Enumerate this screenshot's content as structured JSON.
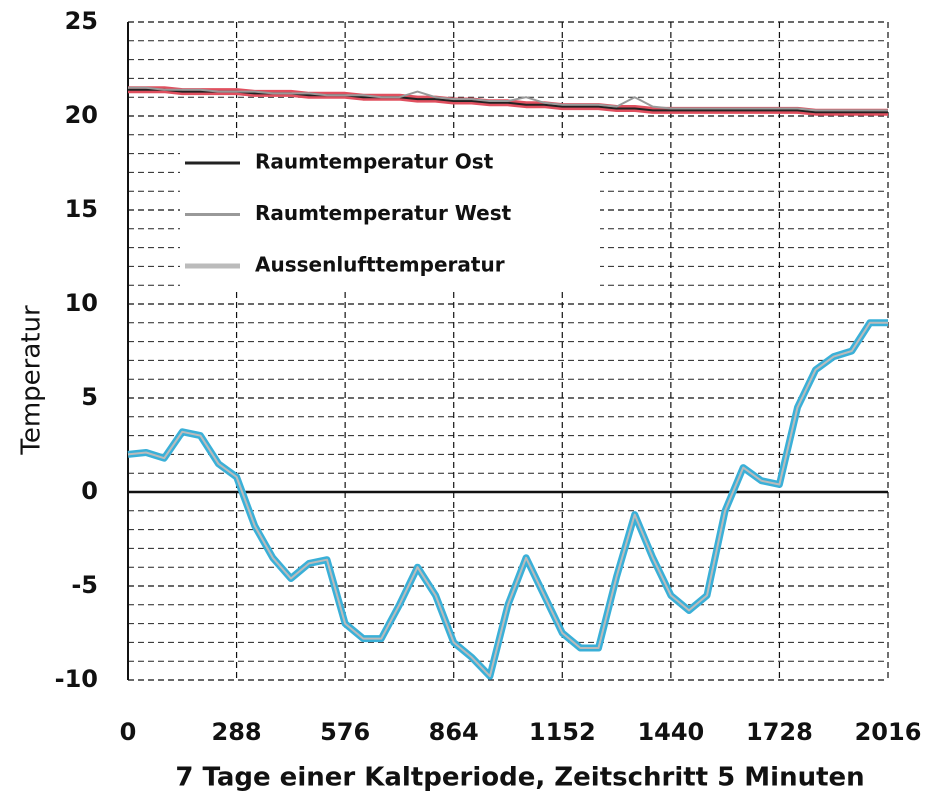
{
  "chart_data": {
    "type": "line",
    "x_label": "7 Tage einer Kaltperiode, Zeitschritt 5 Minuten",
    "y_label": "Temperatur",
    "x": [
      0,
      48,
      96,
      144,
      192,
      240,
      288,
      336,
      384,
      432,
      480,
      528,
      576,
      624,
      672,
      720,
      768,
      816,
      864,
      912,
      960,
      1008,
      1056,
      1104,
      1152,
      1200,
      1248,
      1296,
      1344,
      1392,
      1440,
      1488,
      1536,
      1584,
      1632,
      1680,
      1728,
      1776,
      1824,
      1872,
      1920,
      1968,
      2016
    ],
    "series": [
      {
        "name": "Raumtemperatur Ost",
        "color": "#222222",
        "highlight": "#e0505f",
        "values": [
          21.4,
          21.4,
          21.4,
          21.3,
          21.3,
          21.3,
          21.3,
          21.2,
          21.2,
          21.2,
          21.1,
          21.1,
          21.1,
          21.0,
          21.0,
          21.0,
          20.9,
          20.9,
          20.8,
          20.8,
          20.7,
          20.7,
          20.6,
          20.6,
          20.5,
          20.5,
          20.5,
          20.4,
          20.4,
          20.3,
          20.3,
          20.3,
          20.3,
          20.3,
          20.3,
          20.3,
          20.3,
          20.3,
          20.2,
          20.2,
          20.2,
          20.2,
          20.2
        ]
      },
      {
        "name": "Raumtemperatur West",
        "color": "#999999",
        "values": [
          21.5,
          21.5,
          21.4,
          21.4,
          21.4,
          21.3,
          21.3,
          21.3,
          21.2,
          21.2,
          21.2,
          21.1,
          21.1,
          21.1,
          21.0,
          21.0,
          21.3,
          21.0,
          20.9,
          20.9,
          20.8,
          20.8,
          21.0,
          20.7,
          20.6,
          20.6,
          20.6,
          20.5,
          21.0,
          20.5,
          20.4,
          20.4,
          20.4,
          20.4,
          20.4,
          20.4,
          20.4,
          20.4,
          20.3,
          20.3,
          20.3,
          20.3,
          20.3
        ]
      },
      {
        "name": "Aussenlufttemperatur",
        "color": "#bbbbbb",
        "highlight": "#3ab0d8",
        "values": [
          2,
          2.1,
          1.8,
          3.2,
          3.0,
          1.5,
          0.8,
          -1.8,
          -3.5,
          -4.6,
          -3.8,
          -3.6,
          -7,
          -7.8,
          -7.8,
          -6,
          -4,
          -5.5,
          -8,
          -8.8,
          -9.8,
          -6,
          -3.5,
          -5.5,
          -7.5,
          -8.3,
          -8.3,
          -4.5,
          -1.2,
          -3.5,
          -5.5,
          -6.3,
          -5.5,
          -1,
          1.3,
          0.6,
          0.4,
          4.5,
          6.5,
          7.2,
          7.5,
          9,
          9
        ]
      }
    ],
    "xlim": [
      0,
      2016
    ],
    "xticks": [
      0,
      288,
      576,
      864,
      1152,
      1440,
      1728,
      2016
    ],
    "ylim": [
      -10,
      25
    ],
    "yticks": [
      -10,
      -5,
      0,
      5,
      10,
      15,
      20,
      25
    ],
    "grid": true
  }
}
